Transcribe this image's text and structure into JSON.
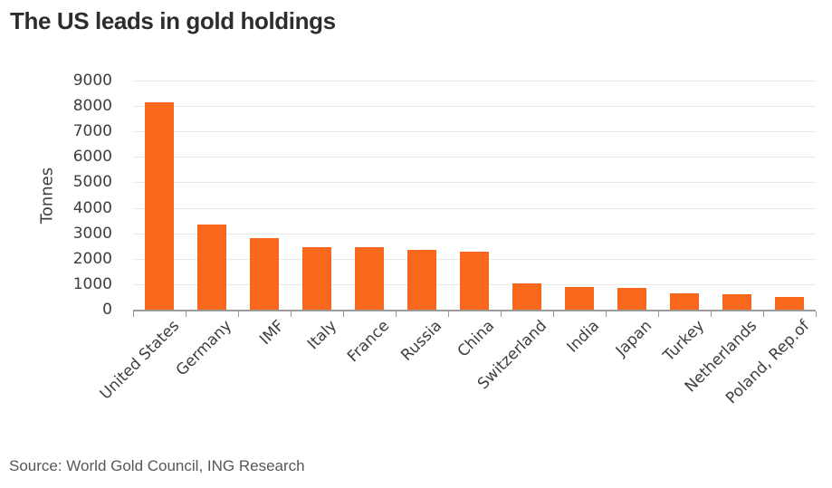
{
  "title": "The US leads in gold holdings",
  "source_note": "Source: World Gold Council, ING Research",
  "colors": {
    "bar": "#f8681c",
    "title_text": "#2d2d2d",
    "axis_text": "#3e3e3e",
    "gridline": "#e8e8e8",
    "axis_line": "#9a9a9a",
    "source_text": "#575757",
    "background": "#ffffff"
  },
  "chart_data": {
    "type": "bar",
    "title": "The US leads in gold holdings",
    "xlabel": "",
    "ylabel": "Tonnes",
    "categories": [
      "United States",
      "Germany",
      "IMF",
      "Italy",
      "France",
      "Russia",
      "China",
      "Switzerland",
      "India",
      "Japan",
      "Turkey",
      "Netherlands",
      "Poland, Rep.of"
    ],
    "values": [
      8133,
      3352,
      2814,
      2452,
      2437,
      2333,
      2280,
      1040,
      880,
      846,
      623,
      612,
      509
    ],
    "ylim": [
      0,
      9000
    ],
    "ytick_step": 1000,
    "yticks": [
      0,
      1000,
      2000,
      3000,
      4000,
      5000,
      6000,
      7000,
      8000,
      9000
    ],
    "grid": true,
    "legend": false,
    "bar_color": "#f8681c",
    "x_label_rotation_deg": 45
  }
}
